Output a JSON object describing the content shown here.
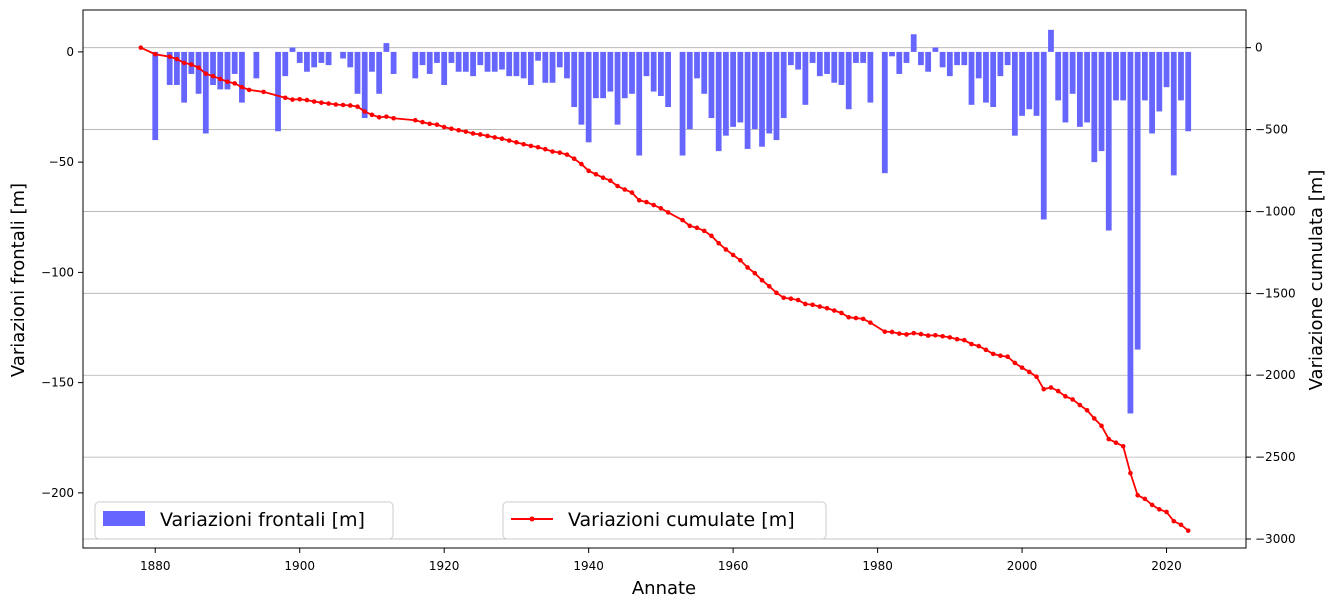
{
  "chart_data": {
    "type": "bar+line",
    "xlabel": "Annate",
    "ylabel_left": "Variazioni frontali [m]",
    "ylabel_right": "Variazione cumulata [m]",
    "xlim": [
      1870,
      2031
    ],
    "ylim_left": [
      -225,
      19
    ],
    "ylim_right": [
      -3055,
      230
    ],
    "xticks": [
      1880,
      1900,
      1920,
      1940,
      1960,
      1980,
      2000,
      2020
    ],
    "yticks_left": [
      0,
      -50,
      -100,
      -150,
      -200
    ],
    "yticks_right": [
      0,
      -500,
      -1000,
      -1500,
      -2000,
      -2500,
      -3000
    ],
    "grid": "horizontal on right axis",
    "legend_bars": "Variazioni frontali [m]",
    "legend_line": "Variazioni cumulate [m]",
    "bar_color": "#6666ff",
    "line_color": "#ff0000",
    "bars": {
      "years": [
        1880,
        1881,
        1882,
        1883,
        1884,
        1885,
        1886,
        1887,
        1888,
        1889,
        1890,
        1891,
        1892,
        1893,
        1894,
        1895,
        1896,
        1897,
        1898,
        1899,
        1900,
        1901,
        1902,
        1903,
        1904,
        1905,
        1906,
        1907,
        1908,
        1909,
        1910,
        1911,
        1912,
        1913,
        1914,
        1915,
        1916,
        1917,
        1918,
        1919,
        1920,
        1921,
        1922,
        1923,
        1924,
        1925,
        1926,
        1927,
        1928,
        1929,
        1930,
        1931,
        1932,
        1933,
        1934,
        1935,
        1936,
        1937,
        1938,
        1939,
        1940,
        1941,
        1942,
        1943,
        1944,
        1945,
        1946,
        1947,
        1948,
        1949,
        1950,
        1951,
        1952,
        1953,
        1954,
        1955,
        1956,
        1957,
        1958,
        1959,
        1960,
        1961,
        1962,
        1963,
        1964,
        1965,
        1966,
        1967,
        1968,
        1969,
        1970,
        1971,
        1972,
        1973,
        1974,
        1975,
        1976,
        1977,
        1978,
        1979,
        1980,
        1981,
        1982,
        1983,
        1984,
        1985,
        1986,
        1987,
        1988,
        1989,
        1990,
        1991,
        1992,
        1993,
        1994,
        1995,
        1996,
        1997,
        1998,
        1999,
        2000,
        2001,
        2002,
        2003,
        2004,
        2005,
        2006,
        2007,
        2008,
        2009,
        2010,
        2011,
        2012,
        2013,
        2014,
        2015,
        2016,
        2017,
        2018,
        2019,
        2020,
        2021,
        2022,
        2023
      ],
      "values": [
        -40,
        0,
        -15,
        -15,
        -23,
        -10,
        -19,
        -37,
        -15,
        -17,
        -17,
        -10,
        -23,
        0,
        -12,
        0,
        0,
        -36,
        -11,
        2,
        -5,
        -9,
        -7,
        -5,
        -6,
        0,
        -3,
        -7,
        -19,
        -30,
        -9,
        -19,
        4,
        -10,
        0,
        0,
        -12,
        -6,
        -10,
        -5,
        -15,
        -5,
        -9,
        -9,
        -11,
        -6,
        -9,
        -9,
        -8,
        -11,
        -11,
        -12,
        -15,
        -4,
        -14,
        -14,
        -7,
        -12,
        -25,
        -33,
        -41,
        -21,
        -21,
        -18,
        -33,
        -21,
        -19,
        -47,
        -11,
        -18,
        -20,
        -25,
        0,
        -47,
        -35,
        -12,
        -19,
        -30,
        -45,
        -38,
        -34,
        -32,
        -44,
        -35,
        -43,
        -37,
        -40,
        -30,
        -6,
        -8,
        -24,
        -5,
        -11,
        -10,
        -14,
        -15,
        -26,
        -5,
        -5,
        -23,
        0,
        -55,
        -2,
        -10,
        -5,
        8,
        -6,
        -9,
        2,
        -7,
        -11,
        -6,
        -6,
        -24,
        -12,
        -23,
        -25,
        -11,
        -6,
        -38,
        -29,
        -26,
        -29,
        -76,
        10,
        -22,
        -32,
        -19,
        -34,
        -32,
        -50,
        -45,
        -81,
        -22,
        -22,
        -164,
        -135,
        -22,
        -37,
        -27,
        -16,
        -56,
        -22,
        -36
      ]
    },
    "line": {
      "years": [
        1878,
        1880,
        1882,
        1883,
        1884,
        1885,
        1886,
        1887,
        1888,
        1889,
        1890,
        1891,
        1892,
        1893,
        1895,
        1898,
        1899,
        1900,
        1901,
        1902,
        1903,
        1904,
        1905,
        1906,
        1907,
        1908,
        1909,
        1910,
        1911,
        1912,
        1913,
        1916,
        1917,
        1918,
        1919,
        1920,
        1921,
        1922,
        1923,
        1924,
        1925,
        1926,
        1927,
        1928,
        1929,
        1930,
        1931,
        1932,
        1933,
        1934,
        1935,
        1936,
        1937,
        1938,
        1939,
        1940,
        1941,
        1942,
        1943,
        1944,
        1945,
        1946,
        1947,
        1948,
        1949,
        1950,
        1951,
        1953,
        1954,
        1955,
        1956,
        1957,
        1958,
        1959,
        1960,
        1961,
        1962,
        1963,
        1964,
        1965,
        1966,
        1967,
        1968,
        1969,
        1970,
        1971,
        1972,
        1973,
        1974,
        1975,
        1976,
        1977,
        1978,
        1979,
        1981,
        1982,
        1983,
        1984,
        1985,
        1986,
        1987,
        1988,
        1989,
        1990,
        1991,
        1992,
        1993,
        1994,
        1995,
        1996,
        1997,
        1998,
        1999,
        2000,
        2001,
        2002,
        2003,
        2004,
        2005,
        2006,
        2007,
        2008,
        2009,
        2010,
        2011,
        2012,
        2013,
        2014,
        2015,
        2016,
        2017,
        2018,
        2019,
        2020,
        2021,
        2022,
        2023
      ],
      "values": [
        0,
        -40,
        -55,
        -70,
        -93,
        -103,
        -122,
        -159,
        -174,
        -191,
        -208,
        -218,
        -241,
        -258,
        -270,
        -306,
        -317,
        -315,
        -320,
        -329,
        -336,
        -341,
        -347,
        -350,
        -353,
        -360,
        -390,
        -410,
        -425,
        -421,
        -431,
        -443,
        -455,
        -465,
        -470,
        -485,
        -495,
        -504,
        -513,
        -524,
        -530,
        -539,
        -548,
        -556,
        -567,
        -578,
        -590,
        -600,
        -608,
        -620,
        -634,
        -641,
        -653,
        -678,
        -711,
        -752,
        -773,
        -794,
        -812,
        -845,
        -866,
        -885,
        -932,
        -943,
        -961,
        -981,
        -1006,
        -1053,
        -1088,
        -1100,
        -1119,
        -1149,
        -1194,
        -1232,
        -1266,
        -1298,
        -1342,
        -1377,
        -1420,
        -1457,
        -1497,
        -1527,
        -1533,
        -1541,
        -1565,
        -1570,
        -1581,
        -1591,
        -1605,
        -1620,
        -1646,
        -1651,
        -1656,
        -1679,
        -1734,
        -1736,
        -1746,
        -1751,
        -1743,
        -1749,
        -1758,
        -1756,
        -1762,
        -1769,
        -1780,
        -1786,
        -1810,
        -1822,
        -1845,
        -1870,
        -1881,
        -1887,
        -1925,
        -1954,
        -1980,
        -2009,
        -2085,
        -2075,
        -2097,
        -2129,
        -2148,
        -2182,
        -2214,
        -2264,
        -2309,
        -2390,
        -2412,
        -2434,
        -2598,
        -2733,
        -2755,
        -2792,
        -2819,
        -2835,
        -2891,
        -2913,
        -2949
      ]
    }
  }
}
